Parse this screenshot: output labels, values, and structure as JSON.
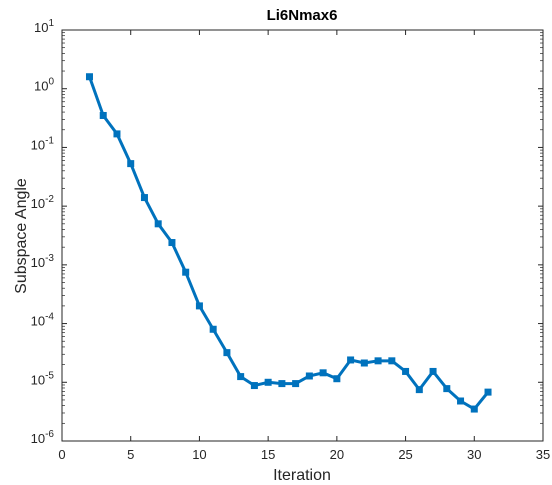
{
  "chart_data": {
    "type": "line",
    "title": "Li6Nmax6",
    "xlabel": "Iteration",
    "ylabel": "Subspace Angle",
    "xlim": [
      0,
      35
    ],
    "ylim": [
      1e-06,
      10
    ],
    "yscale": "log",
    "grid": false,
    "line_color": "#0072BD",
    "x_ticks": [
      0,
      5,
      10,
      15,
      20,
      25,
      30,
      35
    ],
    "y_ticks": [
      {
        "base": "10",
        "exp": "-6"
      },
      {
        "base": "10",
        "exp": "-5"
      },
      {
        "base": "10",
        "exp": "-4"
      },
      {
        "base": "10",
        "exp": "-3"
      },
      {
        "base": "10",
        "exp": "-2"
      },
      {
        "base": "10",
        "exp": "-1"
      },
      {
        "base": "10",
        "exp": "0"
      },
      {
        "base": "10",
        "exp": "1"
      }
    ],
    "series": [
      {
        "x": [
          2,
          3,
          4,
          5,
          6,
          7,
          8,
          9,
          10,
          11,
          12,
          13,
          14,
          15,
          16,
          17,
          18,
          19,
          20,
          21,
          22,
          23,
          24,
          25,
          26,
          27,
          28,
          29,
          30,
          31
        ],
        "y": [
          1.6,
          0.35,
          0.17,
          0.053,
          0.014,
          0.005,
          0.0024,
          0.00075,
          0.0002,
          8e-05,
          3.2e-05,
          1.25e-05,
          8.8e-06,
          1e-05,
          9.5e-06,
          9.5e-06,
          1.28e-05,
          1.45e-05,
          1.15e-05,
          2.4e-05,
          2.13e-05,
          2.32e-05,
          2.32e-05,
          1.53e-05,
          7.5e-06,
          1.53e-05,
          7.8e-06,
          4.8e-06,
          3.5e-06,
          6.8e-06
        ]
      }
    ]
  }
}
